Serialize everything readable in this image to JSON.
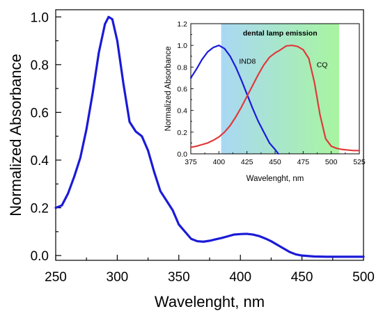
{
  "chart_data": [
    {
      "type": "line",
      "xlabel": "Wavelenght, nm",
      "ylabel": "Normalized Absorbance",
      "xlim": [
        250,
        500
      ],
      "ylim": [
        -0.02,
        1.03
      ],
      "x_ticks": [
        250,
        300,
        350,
        400,
        450,
        500
      ],
      "y_ticks": [
        0.0,
        0.2,
        0.4,
        0.6,
        0.8,
        1.0
      ],
      "x_tick_labels": [
        "250",
        "300",
        "350",
        "400",
        "450",
        "500"
      ],
      "y_tick_labels": [
        "0.0",
        "0.2",
        "0.4",
        "0.6",
        "0.8",
        "1.0"
      ],
      "series": [
        {
          "color": "#1a1ad8",
          "points": [
            [
              250,
              0.2
            ],
            [
              255,
              0.21
            ],
            [
              260,
              0.26
            ],
            [
              265,
              0.33
            ],
            [
              270,
              0.41
            ],
            [
              275,
              0.53
            ],
            [
              280,
              0.68
            ],
            [
              285,
              0.85
            ],
            [
              290,
              0.97
            ],
            [
              293,
              1.0
            ],
            [
              296,
              0.99
            ],
            [
              300,
              0.9
            ],
            [
              305,
              0.72
            ],
            [
              310,
              0.56
            ],
            [
              315,
              0.52
            ],
            [
              320,
              0.5
            ],
            [
              325,
              0.44
            ],
            [
              330,
              0.35
            ],
            [
              335,
              0.27
            ],
            [
              340,
              0.23
            ],
            [
              345,
              0.19
            ],
            [
              350,
              0.13
            ],
            [
              355,
              0.1
            ],
            [
              360,
              0.07
            ],
            [
              365,
              0.06
            ],
            [
              370,
              0.058
            ],
            [
              375,
              0.062
            ],
            [
              380,
              0.068
            ],
            [
              385,
              0.074
            ],
            [
              390,
              0.081
            ],
            [
              395,
              0.088
            ],
            [
              400,
              0.09
            ],
            [
              405,
              0.091
            ],
            [
              410,
              0.088
            ],
            [
              415,
              0.082
            ],
            [
              420,
              0.072
            ],
            [
              425,
              0.06
            ],
            [
              430,
              0.045
            ],
            [
              435,
              0.03
            ],
            [
              440,
              0.015
            ],
            [
              445,
              0.005
            ],
            [
              450,
              0.0
            ],
            [
              460,
              -0.004
            ],
            [
              470,
              -0.005
            ],
            [
              480,
              -0.005
            ],
            [
              490,
              -0.005
            ],
            [
              500,
              -0.005
            ]
          ]
        }
      ]
    },
    {
      "type": "line",
      "xlabel": "Wavelenght, nm",
      "ylabel": "Normalized Absorbance",
      "xlim": [
        375,
        525
      ],
      "ylim": [
        0.0,
        1.2
      ],
      "x_ticks": [
        375,
        400,
        425,
        450,
        475,
        500,
        525
      ],
      "y_ticks": [
        0.0,
        0.2,
        0.4,
        0.6,
        0.8,
        1.0,
        1.2
      ],
      "x_tick_labels": [
        "375",
        "400",
        "425",
        "450",
        "475",
        "500",
        "525"
      ],
      "y_tick_labels": [
        "0.0",
        "0.2",
        "0.4",
        "0.6",
        "0.8",
        "1.0",
        "1.2"
      ],
      "shaded_region": {
        "x_range": [
          402,
          507
        ],
        "label": "dental lamp emission",
        "color_start": "#a9d8f4",
        "color_end": "#a8f5a0"
      },
      "series": [
        {
          "name": "IND8",
          "color": "#1a1ad8",
          "points": [
            [
              375,
              0.7
            ],
            [
              380,
              0.78
            ],
            [
              385,
              0.87
            ],
            [
              390,
              0.94
            ],
            [
              395,
              0.98
            ],
            [
              400,
              1.0
            ],
            [
              405,
              0.97
            ],
            [
              410,
              0.9
            ],
            [
              415,
              0.8
            ],
            [
              420,
              0.68
            ],
            [
              425,
              0.55
            ],
            [
              430,
              0.42
            ],
            [
              435,
              0.3
            ],
            [
              440,
              0.2
            ],
            [
              445,
              0.1
            ],
            [
              450,
              0.04
            ],
            [
              453,
              0.0
            ]
          ]
        },
        {
          "name": "CQ",
          "color": "#e0393b",
          "points": [
            [
              375,
              0.06
            ],
            [
              380,
              0.07
            ],
            [
              385,
              0.085
            ],
            [
              390,
              0.1
            ],
            [
              395,
              0.125
            ],
            [
              400,
              0.155
            ],
            [
              405,
              0.2
            ],
            [
              410,
              0.26
            ],
            [
              415,
              0.34
            ],
            [
              420,
              0.43
            ],
            [
              425,
              0.53
            ],
            [
              430,
              0.63
            ],
            [
              435,
              0.73
            ],
            [
              440,
              0.82
            ],
            [
              445,
              0.89
            ],
            [
              450,
              0.93
            ],
            [
              455,
              0.96
            ],
            [
              460,
              0.995
            ],
            [
              465,
              1.0
            ],
            [
              470,
              0.99
            ],
            [
              475,
              0.96
            ],
            [
              480,
              0.88
            ],
            [
              485,
              0.66
            ],
            [
              490,
              0.36
            ],
            [
              495,
              0.14
            ],
            [
              500,
              0.07
            ],
            [
              505,
              0.05
            ],
            [
              510,
              0.04
            ],
            [
              515,
              0.035
            ],
            [
              520,
              0.03
            ],
            [
              525,
              0.03
            ]
          ]
        }
      ]
    }
  ]
}
